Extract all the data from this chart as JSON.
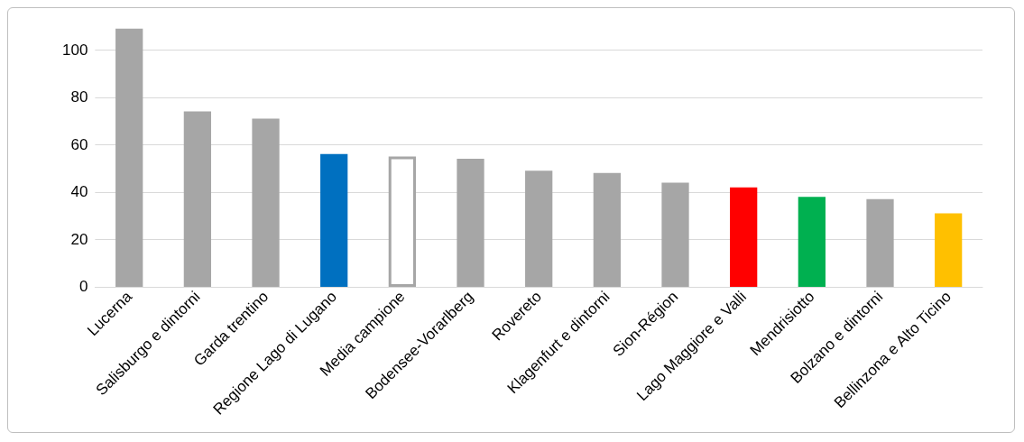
{
  "chart_data": {
    "type": "bar",
    "categories": [
      "Lucerna",
      "Salisburgo e dintorni",
      "Garda trentino",
      "Regione Lago di Lugano",
      "Media campione",
      "Bodensee-Vorarlberg",
      "Rovereto",
      "Klagenfurt e dintorni",
      "Sion-Région",
      "Lago Maggiore e Valli",
      "Mendrisiotto",
      "Bolzano e dintorni",
      "Bellinzona e Alto Ticino"
    ],
    "values": [
      109,
      74,
      71,
      56,
      55,
      54,
      49,
      48,
      44,
      42,
      38,
      37,
      31
    ],
    "colors": [
      "#a6a6a6",
      "#a6a6a6",
      "#a6a6a6",
      "#0070c0",
      "#ffffff",
      "#a6a6a6",
      "#a6a6a6",
      "#a6a6a6",
      "#a6a6a6",
      "#ff0000",
      "#00b050",
      "#a6a6a6",
      "#ffc000"
    ],
    "ylim": [
      0,
      110
    ],
    "yticks": [
      0,
      20,
      40,
      60,
      80,
      100
    ],
    "grid": "y"
  }
}
